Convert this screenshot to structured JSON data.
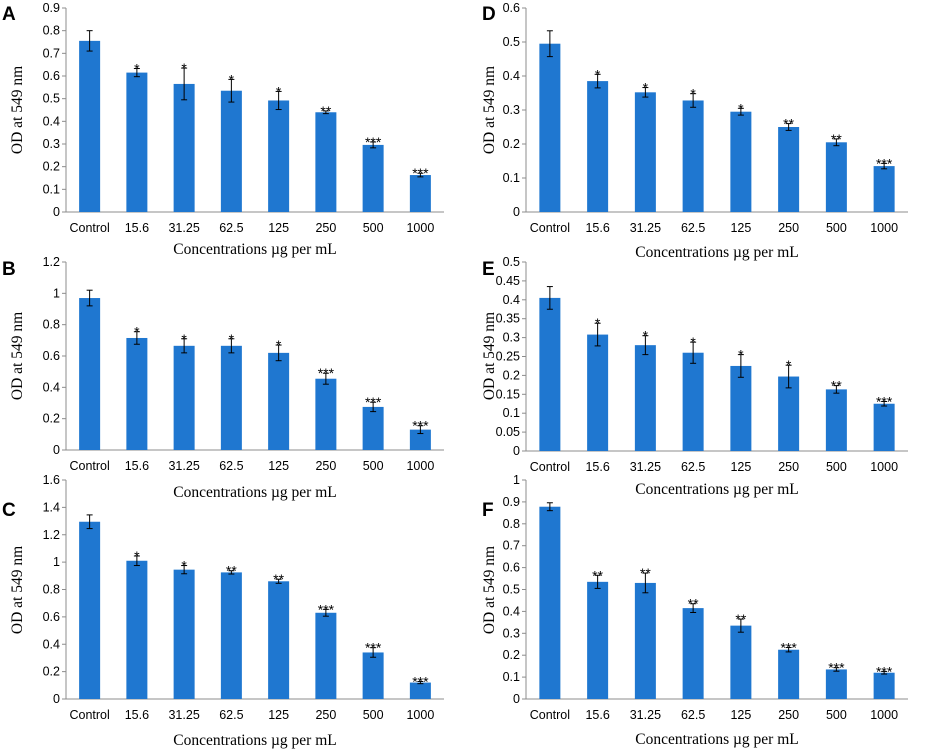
{
  "colors": {
    "bar": "#1f77d0",
    "axis": "#8c8c8c"
  },
  "chart_data": [
    {
      "panel": "A",
      "type": "bar",
      "categories": [
        "Control",
        "15.6",
        "31.25",
        "62.5",
        "125",
        "250",
        "500",
        "1000"
      ],
      "values": [
        0.755,
        0.615,
        0.565,
        0.535,
        0.492,
        0.44,
        0.296,
        0.163
      ],
      "errors": [
        0.045,
        0.018,
        0.07,
        0.05,
        0.04,
        0.006,
        0.013,
        0.008
      ],
      "significance": [
        "",
        "*",
        "*",
        "*",
        "*",
        "**",
        "***",
        "***"
      ],
      "ylim": [
        0,
        0.9
      ],
      "yticks": [
        "0",
        "0.1",
        "0.2",
        "0.3",
        "0.4",
        "0.5",
        "0.6",
        "0.7",
        "0.8",
        "0.9"
      ],
      "ylabel": "OD at 549 nm",
      "xlabel": "Concentrations µg per mL"
    },
    {
      "panel": "B",
      "type": "bar",
      "categories": [
        "Control",
        "15.6",
        "31.25",
        "62.5",
        "125",
        "250",
        "500",
        "1000"
      ],
      "values": [
        0.97,
        0.715,
        0.665,
        0.665,
        0.62,
        0.455,
        0.275,
        0.13
      ],
      "errors": [
        0.05,
        0.04,
        0.045,
        0.045,
        0.05,
        0.035,
        0.03,
        0.025
      ],
      "significance": [
        "",
        "*",
        "*",
        "*",
        "*",
        "***",
        "***",
        "***"
      ],
      "ylim": [
        0,
        1.2
      ],
      "yticks": [
        "0",
        "0.2",
        "0.4",
        "0.6",
        "0.8",
        "1",
        "1.2"
      ],
      "ylabel": "OD at 549 nm",
      "xlabel": "Concentrations µg per mL"
    },
    {
      "panel": "C",
      "type": "bar",
      "categories": [
        "Control",
        "15.6",
        "31.25",
        "62.5",
        "125",
        "250",
        "500",
        "1000"
      ],
      "values": [
        1.295,
        1.01,
        0.945,
        0.925,
        0.86,
        0.63,
        0.34,
        0.12
      ],
      "errors": [
        0.05,
        0.035,
        0.03,
        0.012,
        0.015,
        0.025,
        0.035,
        0.008
      ],
      "significance": [
        "",
        "*",
        "*",
        "**",
        "**",
        "***",
        "***",
        "***"
      ],
      "ylim": [
        0,
        1.6
      ],
      "yticks": [
        "0",
        "0.2",
        "0.4",
        "0.6",
        "0.8",
        "1",
        "1.2",
        "1.4",
        "1.6"
      ],
      "ylabel": "OD at 549 nm",
      "xlabel": "Concentrations µg per mL"
    },
    {
      "panel": "D",
      "type": "bar",
      "categories": [
        "Control",
        "15.6",
        "31.25",
        "62.5",
        "125",
        "250",
        "500",
        "1000"
      ],
      "values": [
        0.495,
        0.385,
        0.352,
        0.328,
        0.295,
        0.25,
        0.205,
        0.135
      ],
      "errors": [
        0.038,
        0.02,
        0.014,
        0.02,
        0.01,
        0.01,
        0.01,
        0.008
      ],
      "significance": [
        "",
        "*",
        "*",
        "*",
        "*",
        "**",
        "**",
        "***"
      ],
      "ylim": [
        0,
        0.6
      ],
      "yticks": [
        "0",
        "0.1",
        "0.2",
        "0.3",
        "0.4",
        "0.5",
        "0.6"
      ],
      "ylabel": "OD at 549 nm",
      "xlabel": "Concentrations µg per mL"
    },
    {
      "panel": "E",
      "type": "bar",
      "categories": [
        "Control",
        "15.6",
        "31.25",
        "62.5",
        "125",
        "250",
        "500",
        "1000"
      ],
      "values": [
        0.405,
        0.308,
        0.28,
        0.26,
        0.225,
        0.197,
        0.163,
        0.125
      ],
      "errors": [
        0.03,
        0.03,
        0.025,
        0.028,
        0.03,
        0.03,
        0.01,
        0.006
      ],
      "significance": [
        "",
        "*",
        "*",
        "*",
        "*",
        "*",
        "**",
        "***"
      ],
      "ylim": [
        0,
        0.5
      ],
      "yticks": [
        "0",
        "0.05",
        "0.1",
        "0.15",
        "0.2",
        "0.25",
        "0.3",
        "0.35",
        "0.4",
        "0.45",
        "0.5"
      ],
      "ylabel": "OD at 549 nm",
      "xlabel": "Concentrations µg per mL"
    },
    {
      "panel": "F",
      "type": "bar",
      "categories": [
        "Control",
        "15.6",
        "31.25",
        "62.5",
        "125",
        "250",
        "500",
        "1000"
      ],
      "values": [
        0.878,
        0.535,
        0.53,
        0.415,
        0.335,
        0.225,
        0.135,
        0.12
      ],
      "errors": [
        0.018,
        0.03,
        0.045,
        0.02,
        0.03,
        0.01,
        0.008,
        0.006
      ],
      "significance": [
        "",
        "**",
        "**",
        "**",
        "**",
        "***",
        "***",
        "***"
      ],
      "ylim": [
        0,
        1
      ],
      "yticks": [
        "0",
        "0.1",
        "0.2",
        "0.3",
        "0.4",
        "0.5",
        "0.6",
        "0.7",
        "0.8",
        "0.9",
        "1"
      ],
      "ylabel": "OD at 549 nm",
      "xlabel": "Concentrations µg per mL"
    }
  ]
}
